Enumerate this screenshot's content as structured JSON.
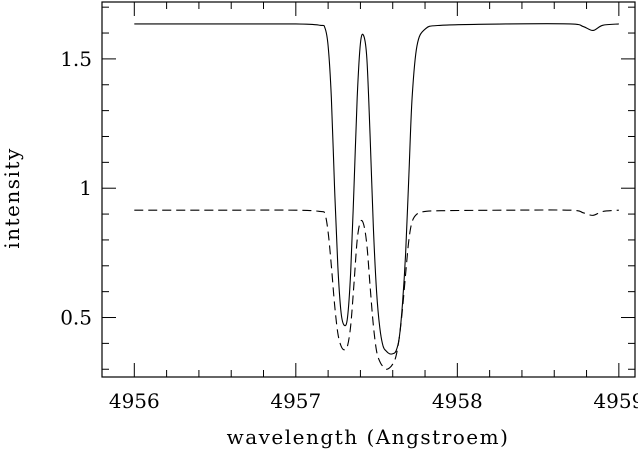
{
  "chart_data": {
    "type": "line",
    "title": "",
    "xlabel": "wavelength (Angstroem)",
    "ylabel": "intensity",
    "xlim": [
      4955.8,
      4959.1
    ],
    "ylim": [
      0.27,
      1.72
    ],
    "xticks": [
      {
        "value": 4956,
        "label": "4956"
      },
      {
        "value": 4957,
        "label": "4957"
      },
      {
        "value": 4958,
        "label": "4958"
      },
      {
        "value": 4959,
        "label": "4959"
      }
    ],
    "yticks": [
      {
        "value": 0.5,
        "label": "0.5"
      },
      {
        "value": 1,
        "label": "1"
      },
      {
        "value": 1.5,
        "label": "1.5"
      }
    ],
    "x_minor_step": 0.2,
    "y_minor_step": 0.1,
    "grid": false,
    "series": [
      {
        "style": "solid",
        "color": "#000000",
        "x": [
          4956.0,
          4956.5,
          4957.0,
          4957.15,
          4957.18,
          4957.2,
          4957.22,
          4957.24,
          4957.26,
          4957.28,
          4957.3,
          4957.32,
          4957.34,
          4957.36,
          4957.38,
          4957.4,
          4957.42,
          4957.44,
          4957.46,
          4957.48,
          4957.5,
          4957.52,
          4957.54,
          4957.56,
          4957.58,
          4957.6,
          4957.62,
          4957.64,
          4957.66,
          4957.68,
          4957.7,
          4957.72,
          4957.75,
          4957.8,
          4957.9,
          4958.3,
          4958.7,
          4958.78,
          4958.84,
          4958.9,
          4959.0
        ],
        "y": [
          1.635,
          1.635,
          1.635,
          1.63,
          1.62,
          1.55,
          1.35,
          1.0,
          0.7,
          0.52,
          0.47,
          0.5,
          0.68,
          1.0,
          1.35,
          1.56,
          1.59,
          1.5,
          1.2,
          0.85,
          0.6,
          0.46,
          0.39,
          0.37,
          0.36,
          0.36,
          0.37,
          0.42,
          0.55,
          0.75,
          1.05,
          1.35,
          1.55,
          1.615,
          1.63,
          1.635,
          1.635,
          1.625,
          1.61,
          1.63,
          1.635
        ]
      },
      {
        "style": "dashed",
        "color": "#000000",
        "x": [
          4956.0,
          4956.5,
          4957.0,
          4957.15,
          4957.18,
          4957.2,
          4957.22,
          4957.24,
          4957.26,
          4957.28,
          4957.3,
          4957.32,
          4957.34,
          4957.36,
          4957.38,
          4957.4,
          4957.42,
          4957.44,
          4957.46,
          4957.48,
          4957.5,
          4957.52,
          4957.54,
          4957.56,
          4957.58,
          4957.6,
          4957.62,
          4957.64,
          4957.66,
          4957.68,
          4957.7,
          4957.72,
          4957.75,
          4957.8,
          4957.9,
          4958.3,
          4958.7,
          4958.78,
          4958.84,
          4958.9,
          4959.0
        ],
        "y": [
          0.915,
          0.915,
          0.915,
          0.91,
          0.9,
          0.83,
          0.7,
          0.55,
          0.44,
          0.39,
          0.375,
          0.39,
          0.47,
          0.63,
          0.8,
          0.87,
          0.86,
          0.78,
          0.62,
          0.47,
          0.37,
          0.33,
          0.31,
          0.3,
          0.305,
          0.32,
          0.35,
          0.42,
          0.53,
          0.67,
          0.8,
          0.87,
          0.9,
          0.91,
          0.913,
          0.915,
          0.915,
          0.905,
          0.895,
          0.91,
          0.915
        ]
      }
    ]
  }
}
